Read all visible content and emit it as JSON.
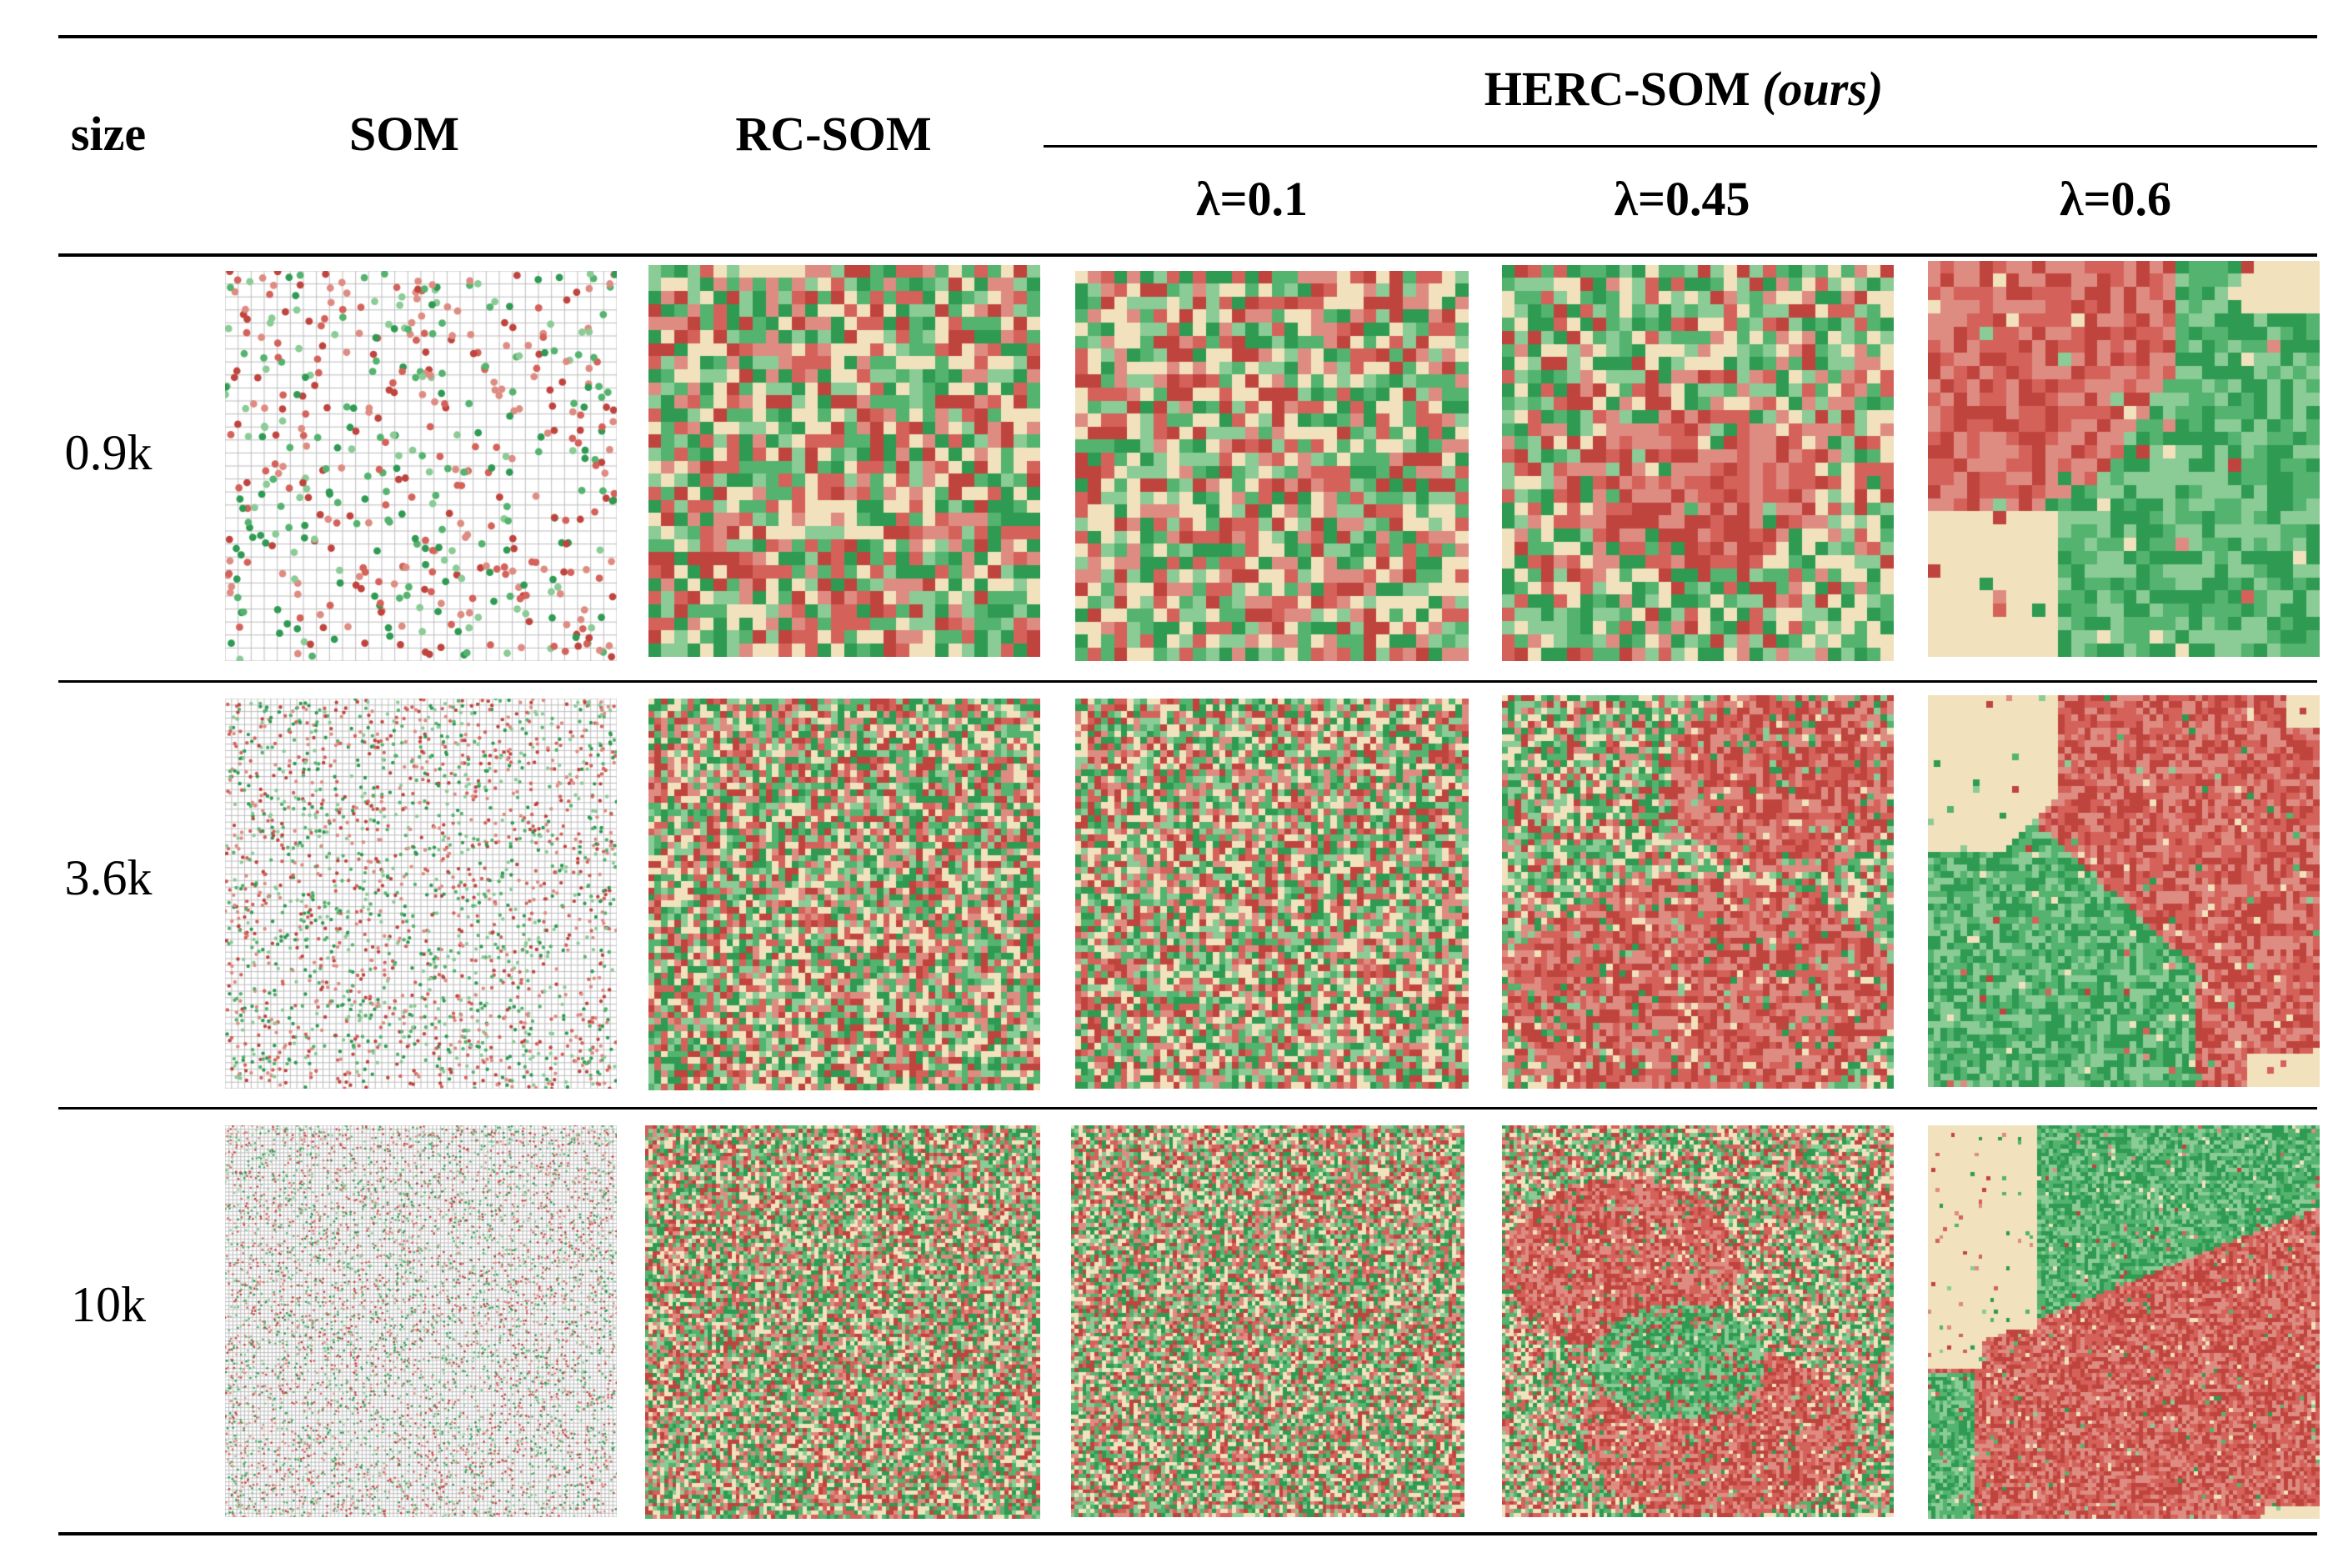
{
  "header": {
    "size": "size",
    "som": "SOM",
    "rcsom": "RC-SOM",
    "herc_main": "HERC-SOM ",
    "herc_ours": "(ours)",
    "lambdas": [
      "λ=0.1",
      "λ=0.45",
      "λ=0.6"
    ]
  },
  "rows": [
    {
      "label": "0.9k"
    },
    {
      "label": "3.6k"
    },
    {
      "label": "10k"
    }
  ],
  "colors": {
    "red_dark": "#c0443e",
    "red": "#d4625a",
    "red_light": "#de8c82",
    "green_dark": "#2e9a52",
    "green": "#54b36e",
    "green_light": "#8acb96",
    "beige": "#f1e2bd",
    "som_grid": "#bdbdbd"
  }
}
